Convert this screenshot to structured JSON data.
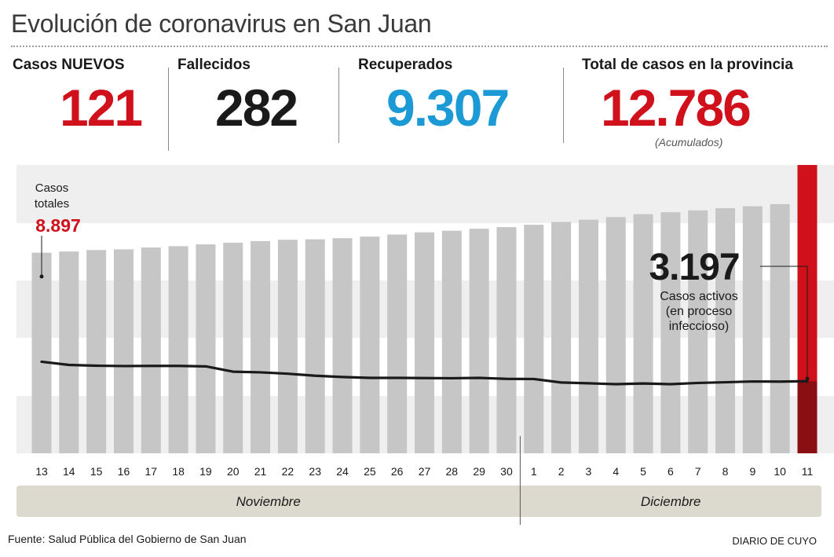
{
  "header": {
    "title": "Evolución de coronavirus en San Juan"
  },
  "stats": {
    "new_cases": {
      "label": "Casos NUEVOS",
      "value": "121",
      "color": "#d0101b"
    },
    "deaths": {
      "label": "Fallecidos",
      "value": "282",
      "color": "#1a1a1a"
    },
    "recovered": {
      "label": "Recuperados",
      "value": "9.307",
      "color": "#1b9ad6"
    },
    "total": {
      "label": "Total de casos en la provincia",
      "value": "12.786",
      "note": "(Acumulados)",
      "color": "#d0101b"
    }
  },
  "annotations": {
    "start_label_line1": "Casos",
    "start_label_line2": "totales",
    "start_value": "8.897",
    "active_value": "3.197",
    "active_line1": "Casos activos",
    "active_line2": "(en proceso",
    "active_line3": "infeccioso)"
  },
  "chart_data": {
    "type": "bar",
    "categories": [
      "13",
      "14",
      "15",
      "16",
      "17",
      "18",
      "19",
      "20",
      "21",
      "22",
      "23",
      "24",
      "25",
      "26",
      "27",
      "28",
      "29",
      "30",
      "1",
      "2",
      "3",
      "4",
      "5",
      "6",
      "7",
      "8",
      "9",
      "10",
      "11"
    ],
    "months": [
      "Noviembre",
      "Diciembre"
    ],
    "series": [
      {
        "values": [
          8897,
          8950,
          9015,
          9045,
          9125,
          9185,
          9265,
          9340,
          9410,
          9470,
          9490,
          9540,
          9610,
          9700,
          9800,
          9870,
          9960,
          10030,
          10135,
          10260,
          10360,
          10475,
          10605,
          10690,
          10775,
          10870,
          10955,
          11050,
          12786
        ],
        "highlight_last_color": "#d0101b",
        "color": "#c6c6c6"
      },
      {
        "type": "line",
        "values": [
          4060,
          3920,
          3885,
          3870,
          3875,
          3875,
          3855,
          3620,
          3590,
          3530,
          3440,
          3385,
          3345,
          3345,
          3335,
          3330,
          3345,
          3300,
          3295,
          3140,
          3105,
          3065,
          3095,
          3065,
          3120,
          3150,
          3185,
          3180,
          3197
        ],
        "color": "#1a1a1a"
      }
    ],
    "ylim": [
      0,
      12786
    ],
    "grid": "horizontal bands",
    "source": "Fuente: Salud Pública del Gobierno de San Juan",
    "publisher": "DIARIO DE CUYO"
  }
}
